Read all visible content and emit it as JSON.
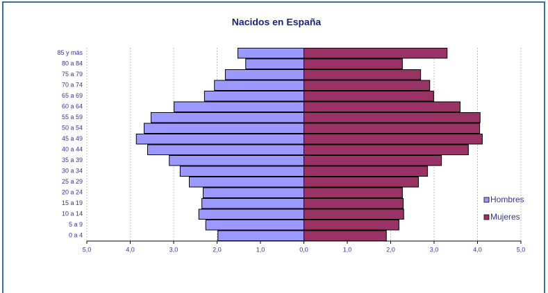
{
  "chart_data": {
    "type": "pyramid",
    "title": "Nacidos en España",
    "categories": [
      "0 a 4",
      "5 a 9",
      "10 a 14",
      "15 a 19",
      "20 a 24",
      "25 a 29",
      "30 a 34",
      "35 a 39",
      "40 a 44",
      "45 a 49",
      "50 a 54",
      "55 a 59",
      "60 a 64",
      "65 a 69",
      "70 a 74",
      "75 a 79",
      "80 a 84",
      "85 y más"
    ],
    "series": [
      {
        "name": "Hombres",
        "color": "#9999ff",
        "values": [
          1.98,
          2.26,
          2.42,
          2.35,
          2.32,
          2.64,
          2.85,
          3.1,
          3.6,
          3.86,
          3.68,
          3.52,
          2.99,
          2.29,
          2.06,
          1.81,
          1.34,
          1.52
        ]
      },
      {
        "name": "Mujeres",
        "color": "#993366",
        "values": [
          1.9,
          2.19,
          2.3,
          2.29,
          2.27,
          2.64,
          2.85,
          3.17,
          3.79,
          4.11,
          4.05,
          4.06,
          3.6,
          2.99,
          2.9,
          2.69,
          2.27,
          3.3
        ]
      }
    ],
    "xlim": [
      -5,
      5
    ],
    "xticks": [
      {
        "value": -5,
        "label": "5,0"
      },
      {
        "value": -4,
        "label": "4,0"
      },
      {
        "value": -3,
        "label": "3,0"
      },
      {
        "value": -2,
        "label": "2,0"
      },
      {
        "value": -1,
        "label": "1,0"
      },
      {
        "value": 0,
        "label": "0,0"
      },
      {
        "value": 1,
        "label": "1,0"
      },
      {
        "value": 2,
        "label": "2,0"
      },
      {
        "value": 3,
        "label": "3,0"
      },
      {
        "value": 4,
        "label": "4,0"
      },
      {
        "value": 5,
        "label": "5,0"
      }
    ],
    "grid": true,
    "legend": "right"
  }
}
